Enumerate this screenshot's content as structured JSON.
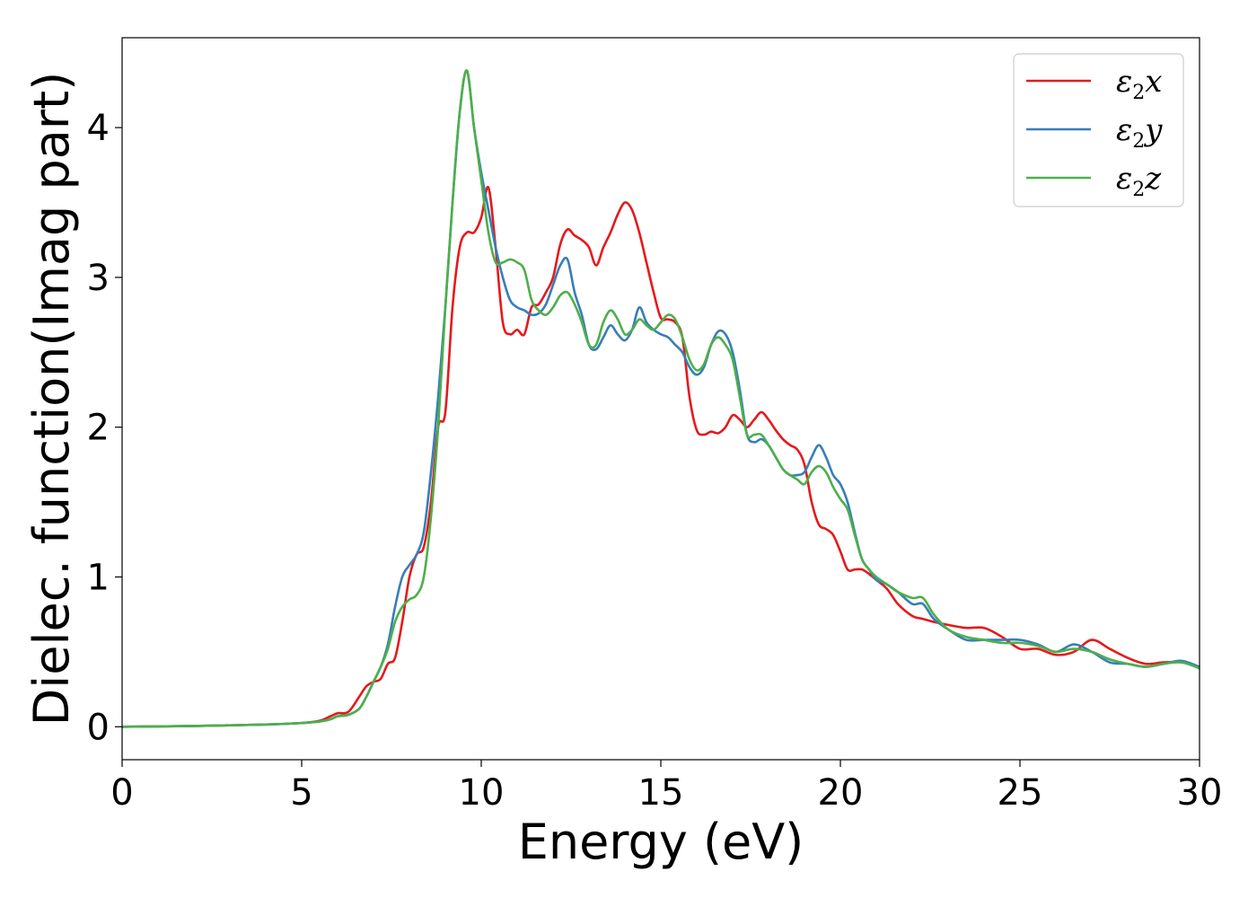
{
  "chart_data": {
    "type": "line",
    "title": "",
    "xlabel": "Energy (eV)",
    "ylabel": "Dielec. function(Imag part)",
    "xlim": [
      0,
      30
    ],
    "ylim": [
      -0.22,
      4.6
    ],
    "xticks": [
      0,
      5,
      10,
      15,
      20,
      25,
      30
    ],
    "yticks": [
      0,
      1,
      2,
      3,
      4
    ],
    "grid": false,
    "legend_position": "top-right",
    "series": [
      {
        "name": "ε2x",
        "name_base": "ε",
        "name_sub": "2",
        "name_tail": "x",
        "color": "#e41a1c",
        "x": [
          0,
          2,
          4,
          5,
          5.5,
          5.8,
          6.0,
          6.3,
          6.6,
          6.8,
          7.0,
          7.2,
          7.4,
          7.6,
          7.8,
          8.0,
          8.2,
          8.4,
          8.6,
          8.8,
          9.0,
          9.2,
          9.4,
          9.6,
          9.8,
          10.0,
          10.2,
          10.4,
          10.6,
          10.8,
          11.0,
          11.2,
          11.4,
          11.6,
          11.8,
          12.0,
          12.2,
          12.4,
          12.6,
          12.8,
          13.0,
          13.2,
          13.4,
          13.6,
          13.8,
          14.0,
          14.2,
          14.4,
          14.6,
          14.8,
          15.0,
          15.2,
          15.4,
          15.6,
          15.8,
          16.0,
          16.2,
          16.4,
          16.6,
          16.8,
          17.0,
          17.2,
          17.4,
          17.6,
          17.8,
          18.0,
          18.2,
          18.4,
          18.6,
          18.8,
          19.0,
          19.2,
          19.4,
          19.6,
          19.8,
          20.0,
          20.2,
          20.4,
          20.6,
          20.8,
          21.0,
          21.3,
          21.6,
          22.0,
          22.3,
          22.6,
          23.0,
          23.5,
          24.0,
          24.5,
          25.0,
          25.5,
          26.0,
          26.5,
          27.0,
          27.5,
          28.0,
          28.5,
          29.0,
          29.5,
          30.0
        ],
        "y": [
          0,
          0.005,
          0.015,
          0.025,
          0.04,
          0.07,
          0.09,
          0.1,
          0.2,
          0.27,
          0.3,
          0.32,
          0.42,
          0.46,
          0.7,
          1.0,
          1.15,
          1.2,
          1.5,
          2.0,
          2.1,
          2.8,
          3.2,
          3.3,
          3.3,
          3.4,
          3.6,
          3.2,
          2.7,
          2.62,
          2.65,
          2.62,
          2.8,
          2.82,
          2.9,
          3.0,
          3.22,
          3.32,
          3.28,
          3.25,
          3.2,
          3.08,
          3.2,
          3.3,
          3.42,
          3.5,
          3.45,
          3.3,
          3.1,
          2.9,
          2.73,
          2.72,
          2.7,
          2.6,
          2.2,
          1.98,
          1.95,
          1.97,
          1.96,
          2.0,
          2.08,
          2.05,
          2.0,
          2.05,
          2.1,
          2.05,
          1.98,
          1.92,
          1.88,
          1.85,
          1.75,
          1.5,
          1.35,
          1.32,
          1.28,
          1.17,
          1.05,
          1.05,
          1.05,
          1.02,
          0.98,
          0.92,
          0.82,
          0.74,
          0.72,
          0.7,
          0.68,
          0.66,
          0.66,
          0.6,
          0.52,
          0.52,
          0.48,
          0.5,
          0.58,
          0.52,
          0.46,
          0.42,
          0.43,
          0.43,
          0.4
        ]
      },
      {
        "name": "ε2y",
        "name_base": "ε",
        "name_sub": "2",
        "name_tail": "y",
        "color": "#377eb8",
        "x": [
          0,
          2,
          4,
          5,
          5.5,
          5.8,
          6.0,
          6.3,
          6.6,
          6.8,
          7.0,
          7.2,
          7.4,
          7.6,
          7.8,
          8.0,
          8.2,
          8.4,
          8.6,
          8.8,
          9.0,
          9.2,
          9.4,
          9.6,
          9.8,
          10.0,
          10.2,
          10.4,
          10.6,
          10.8,
          11.0,
          11.2,
          11.4,
          11.6,
          11.8,
          12.0,
          12.2,
          12.4,
          12.6,
          12.8,
          13.0,
          13.2,
          13.4,
          13.6,
          13.8,
          14.0,
          14.2,
          14.4,
          14.6,
          14.8,
          15.0,
          15.2,
          15.4,
          15.6,
          15.8,
          16.0,
          16.2,
          16.4,
          16.6,
          16.8,
          17.0,
          17.2,
          17.4,
          17.6,
          17.8,
          18.0,
          18.2,
          18.4,
          18.6,
          18.8,
          19.0,
          19.2,
          19.4,
          19.6,
          19.8,
          20.0,
          20.2,
          20.4,
          20.6,
          20.8,
          21.0,
          21.3,
          21.6,
          22.0,
          22.3,
          22.6,
          23.0,
          23.5,
          24.0,
          24.5,
          25.0,
          25.5,
          26.0,
          26.5,
          27.0,
          27.5,
          28.0,
          28.5,
          29.0,
          29.5,
          30.0
        ],
        "y": [
          0,
          0.005,
          0.015,
          0.025,
          0.035,
          0.05,
          0.07,
          0.08,
          0.12,
          0.2,
          0.3,
          0.4,
          0.55,
          0.8,
          1.0,
          1.08,
          1.15,
          1.3,
          1.7,
          2.2,
          2.8,
          3.5,
          4.1,
          4.38,
          4.0,
          3.7,
          3.45,
          3.2,
          3.0,
          2.85,
          2.8,
          2.78,
          2.75,
          2.76,
          2.82,
          2.95,
          3.08,
          3.12,
          2.9,
          2.75,
          2.55,
          2.52,
          2.6,
          2.68,
          2.62,
          2.58,
          2.65,
          2.8,
          2.7,
          2.65,
          2.62,
          2.6,
          2.55,
          2.5,
          2.4,
          2.35,
          2.4,
          2.55,
          2.64,
          2.62,
          2.5,
          2.25,
          1.95,
          1.9,
          1.92,
          1.88,
          1.8,
          1.72,
          1.68,
          1.68,
          1.7,
          1.8,
          1.88,
          1.8,
          1.68,
          1.62,
          1.5,
          1.3,
          1.12,
          1.05,
          0.98,
          0.95,
          0.9,
          0.82,
          0.82,
          0.72,
          0.65,
          0.58,
          0.58,
          0.58,
          0.58,
          0.55,
          0.5,
          0.55,
          0.5,
          0.43,
          0.42,
          0.4,
          0.42,
          0.44,
          0.4
        ]
      },
      {
        "name": "ε2z",
        "name_base": "ε",
        "name_sub": "2",
        "name_tail": "z",
        "color": "#4daf4a",
        "x": [
          0,
          2,
          4,
          5,
          5.5,
          5.8,
          6.0,
          6.3,
          6.6,
          6.8,
          7.0,
          7.2,
          7.4,
          7.6,
          7.8,
          8.0,
          8.2,
          8.4,
          8.6,
          8.8,
          9.0,
          9.2,
          9.4,
          9.6,
          9.8,
          10.0,
          10.2,
          10.4,
          10.6,
          10.8,
          11.0,
          11.2,
          11.4,
          11.6,
          11.8,
          12.0,
          12.2,
          12.4,
          12.6,
          12.8,
          13.0,
          13.2,
          13.4,
          13.6,
          13.8,
          14.0,
          14.2,
          14.4,
          14.6,
          14.8,
          15.0,
          15.2,
          15.4,
          15.6,
          15.8,
          16.0,
          16.2,
          16.4,
          16.6,
          16.8,
          17.0,
          17.2,
          17.4,
          17.6,
          17.8,
          18.0,
          18.2,
          18.4,
          18.6,
          18.8,
          19.0,
          19.2,
          19.4,
          19.6,
          19.8,
          20.0,
          20.2,
          20.4,
          20.6,
          20.8,
          21.0,
          21.3,
          21.6,
          22.0,
          22.3,
          22.6,
          23.0,
          23.5,
          24.0,
          24.5,
          25.0,
          25.5,
          26.0,
          26.5,
          27.0,
          27.5,
          28.0,
          28.5,
          29.0,
          29.5,
          30.0
        ],
        "y": [
          0,
          0.005,
          0.015,
          0.025,
          0.035,
          0.05,
          0.07,
          0.08,
          0.12,
          0.2,
          0.3,
          0.4,
          0.52,
          0.7,
          0.8,
          0.85,
          0.88,
          1.0,
          1.4,
          2.0,
          2.8,
          3.5,
          4.1,
          4.38,
          4.0,
          3.65,
          3.3,
          3.1,
          3.1,
          3.12,
          3.1,
          3.05,
          2.85,
          2.78,
          2.75,
          2.8,
          2.88,
          2.9,
          2.82,
          2.7,
          2.55,
          2.55,
          2.7,
          2.78,
          2.72,
          2.62,
          2.65,
          2.72,
          2.68,
          2.65,
          2.7,
          2.75,
          2.72,
          2.6,
          2.45,
          2.38,
          2.42,
          2.55,
          2.6,
          2.55,
          2.45,
          2.2,
          1.95,
          1.95,
          1.95,
          1.88,
          1.8,
          1.72,
          1.68,
          1.65,
          1.62,
          1.7,
          1.74,
          1.7,
          1.6,
          1.52,
          1.45,
          1.28,
          1.12,
          1.05,
          1.0,
          0.95,
          0.9,
          0.86,
          0.86,
          0.75,
          0.65,
          0.6,
          0.58,
          0.56,
          0.56,
          0.54,
          0.5,
          0.52,
          0.5,
          0.45,
          0.42,
          0.4,
          0.42,
          0.43,
          0.39
        ]
      }
    ]
  }
}
